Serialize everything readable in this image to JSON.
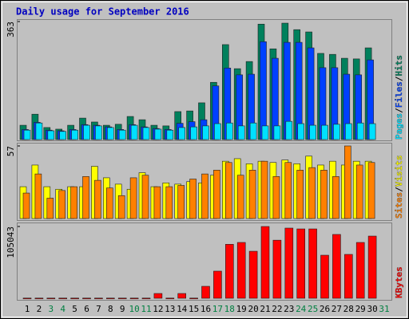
{
  "chart_data": [
    {
      "type": "bar",
      "title": "Daily usage for September 2016",
      "categories": [
        "1",
        "2",
        "3",
        "4",
        "5",
        "6",
        "7",
        "8",
        "9",
        "10",
        "11",
        "12",
        "13",
        "14",
        "15",
        "16",
        "17",
        "18",
        "19",
        "20",
        "21",
        "22",
        "23",
        "24",
        "25",
        "26",
        "27",
        "28",
        "29",
        "30",
        "31"
      ],
      "category_colors": [
        "#000000",
        "#000000",
        "#007f40",
        "#007f40",
        "#000000",
        "#000000",
        "#000000",
        "#000000",
        "#000000",
        "#007f40",
        "#007f40",
        "#000000",
        "#000000",
        "#000000",
        "#000000",
        "#000000",
        "#007f40",
        "#007f40",
        "#000000",
        "#000000",
        "#000000",
        "#000000",
        "#000000",
        "#007f40",
        "#007f40",
        "#000000",
        "#000000",
        "#000000",
        "#000000",
        "#000000",
        "#007f40"
      ],
      "ylim": [
        0,
        363
      ],
      "yticks": [
        363
      ],
      "legend_separator": "/",
      "series": [
        {
          "name": "Hits",
          "color": "#00805c",
          "values": [
            44,
            78,
            37,
            32,
            44,
            66,
            54,
            44,
            47,
            71,
            61,
            44,
            42,
            86,
            88,
            113,
            176,
            292,
            218,
            240,
            355,
            279,
            358,
            338,
            331,
            265,
            262,
            250,
            248,
            282,
            null
          ]
        },
        {
          "name": "Files",
          "color": "#0040ff",
          "values": [
            31,
            53,
            29,
            27,
            31,
            46,
            44,
            39,
            31,
            46,
            39,
            34,
            31,
            50,
            55,
            61,
            165,
            220,
            199,
            201,
            301,
            250,
            299,
            299,
            282,
            221,
            221,
            201,
            199,
            245,
            null
          ]
        },
        {
          "name": "Pages",
          "color": "#00e0ff",
          "values": [
            29,
            51,
            27,
            25,
            29,
            44,
            42,
            37,
            29,
            44,
            37,
            32,
            29,
            37,
            39,
            42,
            49,
            51,
            42,
            51,
            42,
            42,
            56,
            49,
            44,
            44,
            47,
            49,
            51,
            49,
            null
          ]
        }
      ]
    },
    {
      "type": "bar",
      "ylim": [
        0,
        57
      ],
      "yticks": [
        57
      ],
      "legend_separator": "/",
      "series": [
        {
          "name": "Visits",
          "color": "#ffff00",
          "values": [
            25,
            42,
            25,
            23,
            25,
            25,
            41,
            32,
            27,
            23,
            36,
            25,
            28,
            27,
            29,
            28,
            34,
            45,
            47,
            43,
            45,
            44,
            46,
            43,
            49,
            42,
            45,
            42,
            45,
            45,
            null
          ]
        },
        {
          "name": "Sites",
          "color": "#ff8000",
          "values": [
            20,
            35,
            16,
            22,
            25,
            33,
            30,
            24,
            18,
            32,
            34,
            25,
            25,
            26,
            31,
            35,
            38,
            44,
            34,
            38,
            45,
            33,
            44,
            38,
            40,
            38,
            33,
            57,
            42,
            44,
            null
          ]
        }
      ]
    },
    {
      "type": "bar",
      "ylim": [
        0,
        105043
      ],
      "yticks": [
        105043
      ],
      "series": [
        {
          "name": "KBytes",
          "color": "#ff0000",
          "values": [
            300,
            300,
            300,
            300,
            300,
            300,
            300,
            300,
            300,
            300,
            300,
            7000,
            300,
            7000,
            300,
            17500,
            39700,
            79000,
            81700,
            68800,
            105043,
            85000,
            102700,
            101500,
            101500,
            63000,
            93400,
            64200,
            81700,
            91000,
            null
          ]
        }
      ]
    }
  ]
}
